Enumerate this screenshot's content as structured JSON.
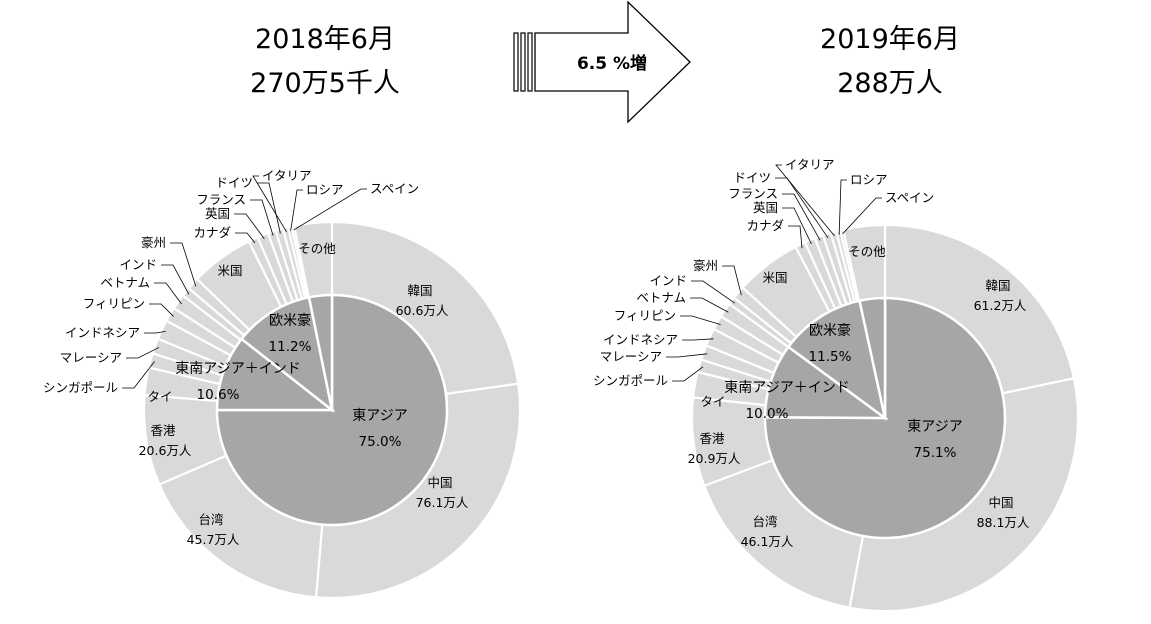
{
  "arrow": {
    "label": "6.5 %増"
  },
  "chart_data": [
    {
      "type": "pie",
      "heading": [
        "2018年6月",
        "270万5千人"
      ],
      "inner_ring": [
        {
          "label": "東アジア",
          "value": 75.0,
          "display": "75.0%"
        },
        {
          "label": "東南アジア＋インド",
          "value": 10.6,
          "display": "10.6%"
        },
        {
          "label": "欧米豪",
          "value": 11.2,
          "display": "11.2%"
        },
        {
          "label": "",
          "value": 3.2,
          "display": ""
        }
      ],
      "outer_ring": [
        {
          "label": "韓国",
          "value": 60.6,
          "display": "60.6万人"
        },
        {
          "label": "中国",
          "value": 76.1,
          "display": "76.1万人"
        },
        {
          "label": "台湾",
          "value": 45.7,
          "display": "45.7万人"
        },
        {
          "label": "香港",
          "value": 20.6,
          "display": "20.6万人"
        },
        {
          "label": "タイ",
          "value": 6.3,
          "display": ""
        },
        {
          "label": "シンガポール",
          "value": 3.3,
          "display": ""
        },
        {
          "label": "マレーシア",
          "value": 3.5,
          "display": ""
        },
        {
          "label": "インドネシア",
          "value": 4.5,
          "display": ""
        },
        {
          "label": "フィリピン",
          "value": 3.3,
          "display": ""
        },
        {
          "label": "ベトナム",
          "value": 3.5,
          "display": ""
        },
        {
          "label": "インド",
          "value": 2.1,
          "display": ""
        },
        {
          "label": "豪州",
          "value": 2.8,
          "display": ""
        },
        {
          "label": "米国",
          "value": 14.5,
          "display": ""
        },
        {
          "label": "カナダ",
          "value": 2.2,
          "display": ""
        },
        {
          "label": "英国",
          "value": 2.5,
          "display": ""
        },
        {
          "label": "フランス",
          "value": 1.8,
          "display": ""
        },
        {
          "label": "ドイツ",
          "value": 1.7,
          "display": ""
        },
        {
          "label": "イタリア",
          "value": 1.2,
          "display": ""
        },
        {
          "label": "ロシア",
          "value": 0.8,
          "display": ""
        },
        {
          "label": "スペイン",
          "value": 0.6,
          "display": ""
        },
        {
          "label": "その他",
          "value": 8.6,
          "display": ""
        }
      ]
    },
    {
      "type": "pie",
      "heading": [
        "2019年6月",
        "288万人"
      ],
      "inner_ring": [
        {
          "label": "東アジア",
          "value": 75.1,
          "display": "75.1%"
        },
        {
          "label": "東南アジア＋インド",
          "value": 10.0,
          "display": "10.0%"
        },
        {
          "label": "欧米豪",
          "value": 11.5,
          "display": "11.5%"
        },
        {
          "label": "",
          "value": 3.4,
          "display": ""
        }
      ],
      "outer_ring": [
        {
          "label": "韓国",
          "value": 61.2,
          "display": "61.2万人"
        },
        {
          "label": "中国",
          "value": 88.1,
          "display": "88.1万人"
        },
        {
          "label": "台湾",
          "value": 46.1,
          "display": "46.1万人"
        },
        {
          "label": "香港",
          "value": 20.9,
          "display": "20.9万人"
        },
        {
          "label": "タイ",
          "value": 6.0,
          "display": ""
        },
        {
          "label": "シンガポール",
          "value": 3.0,
          "display": ""
        },
        {
          "label": "マレーシア",
          "value": 3.5,
          "display": ""
        },
        {
          "label": "インドネシア",
          "value": 4.2,
          "display": ""
        },
        {
          "label": "フィリピン",
          "value": 3.4,
          "display": ""
        },
        {
          "label": "ベトナム",
          "value": 3.5,
          "display": ""
        },
        {
          "label": "インド",
          "value": 1.8,
          "display": ""
        },
        {
          "label": "豪州",
          "value": 3.1,
          "display": ""
        },
        {
          "label": "米国",
          "value": 15.6,
          "display": ""
        },
        {
          "label": "カナダ",
          "value": 2.4,
          "display": ""
        },
        {
          "label": "英国",
          "value": 2.5,
          "display": ""
        },
        {
          "label": "フランス",
          "value": 2.0,
          "display": ""
        },
        {
          "label": "ドイツ",
          "value": 1.9,
          "display": ""
        },
        {
          "label": "イタリア",
          "value": 1.3,
          "display": ""
        },
        {
          "label": "ロシア",
          "value": 1.0,
          "display": ""
        },
        {
          "label": "スペイン",
          "value": 0.7,
          "display": ""
        },
        {
          "label": "その他",
          "value": 9.8,
          "display": ""
        }
      ]
    }
  ]
}
